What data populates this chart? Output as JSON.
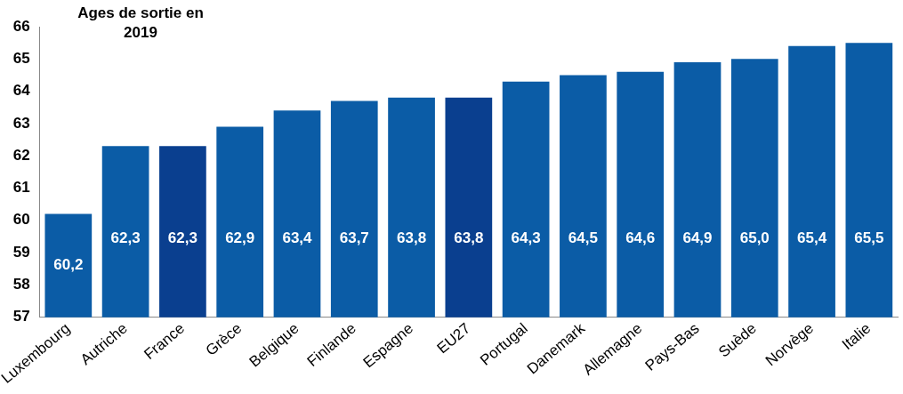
{
  "chart_data": {
    "type": "bar",
    "title": "Ages de sortie en 2019",
    "categories": [
      "Luxembourg",
      "Autriche",
      "France",
      "Grèce",
      "Belgique",
      "Finlande",
      "Espagne",
      "EU27",
      "Portugal",
      "Danemark",
      "Allemagne",
      "Pays-Bas",
      "Suède",
      "Norvège",
      "Italie"
    ],
    "values": [
      60.2,
      62.3,
      62.3,
      62.9,
      63.4,
      63.7,
      63.8,
      63.8,
      64.3,
      64.5,
      64.6,
      64.9,
      65.0,
      65.4,
      65.5
    ],
    "value_labels": [
      "60,2",
      "62,3",
      "62,3",
      "62,9",
      "63,4",
      "63,7",
      "63,8",
      "63,8",
      "64,3",
      "64,5",
      "64,6",
      "64,9",
      "65,0",
      "65,4",
      "65,5"
    ],
    "colors": [
      "#0b5ca6",
      "#0b5ca6",
      "#0a3f8f",
      "#0b5ca6",
      "#0b5ca6",
      "#0b5ca6",
      "#0b5ca6",
      "#0a3f8f",
      "#0b5ca6",
      "#0b5ca6",
      "#0b5ca6",
      "#0b5ca6",
      "#0b5ca6",
      "#0b5ca6",
      "#0b5ca6"
    ],
    "ylim": [
      57,
      66
    ],
    "yticks": [
      57,
      58,
      59,
      60,
      61,
      62,
      63,
      64,
      65,
      66
    ],
    "grid": false,
    "legend": false
  }
}
